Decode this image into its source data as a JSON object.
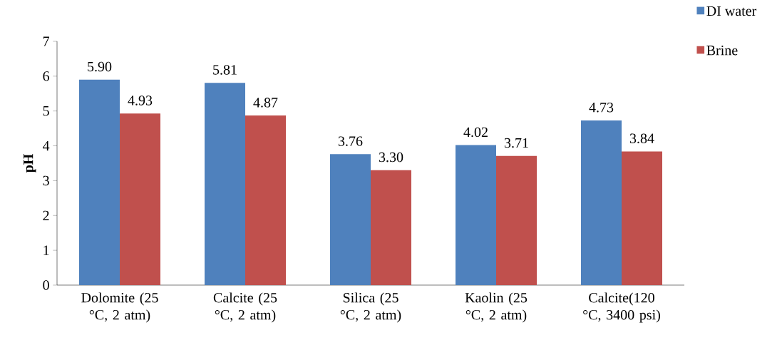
{
  "chart_data": {
    "type": "bar",
    "ylabel": "pH",
    "categories": [
      "Dolomite (25 °C, 2 atm)",
      "Calcite (25 °C, 2 atm)",
      "Silica (25 °C, 2 atm)",
      "Kaolin (25 °C, 2 atm)",
      "Calcite(120 °C, 3400 psi)"
    ],
    "series": [
      {
        "name": "DI water",
        "color": "#4f81bd",
        "values": [
          5.9,
          5.81,
          3.76,
          4.02,
          4.73
        ],
        "value_labels": [
          "5.90",
          "5.81",
          "3.76",
          "4.02",
          "4.73"
        ]
      },
      {
        "name": "Brine",
        "color": "#c0504d",
        "values": [
          4.93,
          4.87,
          3.3,
          3.71,
          3.84
        ],
        "value_labels": [
          "4.93",
          "4.87",
          "3.30",
          "3.71",
          "3.84"
        ]
      }
    ],
    "ylim": [
      0,
      7
    ],
    "yticks": [
      0,
      1,
      2,
      3,
      4,
      5,
      6,
      7
    ],
    "legend": "top right",
    "grid": false
  }
}
